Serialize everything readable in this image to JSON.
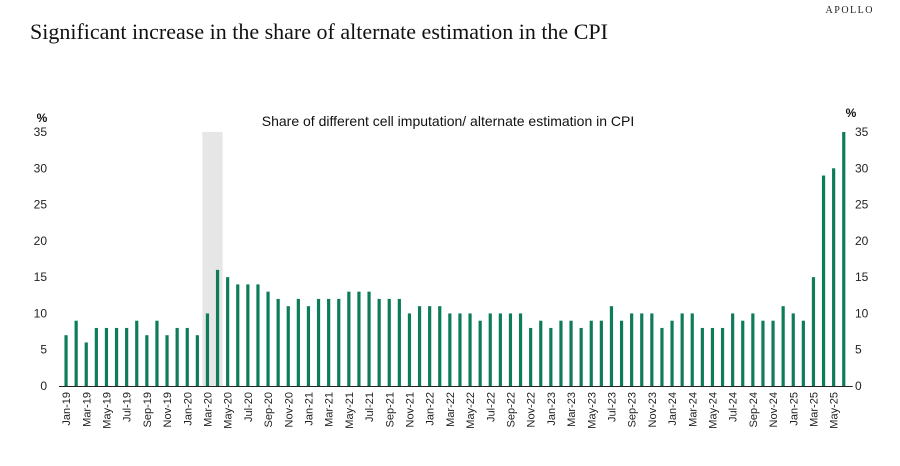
{
  "brand": "APOLLO",
  "page_title": "Significant increase in the share of alternate estimation in the CPI",
  "colors": {
    "bar": "#0e7c5b",
    "shade": "#e6e6e6",
    "text": "#222222"
  },
  "chart_data": {
    "type": "bar",
    "title": "Share of different cell imputation/ alternate estimation in CPI",
    "ylabel_left": "%",
    "ylabel_right": "%",
    "ylim": [
      0,
      35
    ],
    "yticks": [
      0,
      5,
      10,
      15,
      20,
      25,
      30,
      35
    ],
    "shaded_region": {
      "from": "Mar-20",
      "to": "Apr-20"
    },
    "categories": [
      "Jan-19",
      "Feb-19",
      "Mar-19",
      "Apr-19",
      "May-19",
      "Jun-19",
      "Jul-19",
      "Aug-19",
      "Sep-19",
      "Oct-19",
      "Nov-19",
      "Dec-19",
      "Jan-20",
      "Feb-20",
      "Mar-20",
      "Apr-20",
      "May-20",
      "Jun-20",
      "Jul-20",
      "Aug-20",
      "Sep-20",
      "Oct-20",
      "Nov-20",
      "Dec-20",
      "Jan-21",
      "Feb-21",
      "Mar-21",
      "Apr-21",
      "May-21",
      "Jun-21",
      "Jul-21",
      "Aug-21",
      "Sep-21",
      "Oct-21",
      "Nov-21",
      "Dec-21",
      "Jan-22",
      "Feb-22",
      "Mar-22",
      "Apr-22",
      "May-22",
      "Jun-22",
      "Jul-22",
      "Aug-22",
      "Sep-22",
      "Oct-22",
      "Nov-22",
      "Dec-22",
      "Jan-23",
      "Feb-23",
      "Mar-23",
      "Apr-23",
      "May-23",
      "Jun-23",
      "Jul-23",
      "Aug-23",
      "Sep-23",
      "Oct-23",
      "Nov-23",
      "Dec-23",
      "Jan-24",
      "Feb-24",
      "Mar-24",
      "Apr-24",
      "May-24",
      "Jun-24",
      "Jul-24",
      "Aug-24",
      "Sep-24",
      "Oct-24",
      "Nov-24",
      "Dec-24",
      "Jan-25",
      "Feb-25",
      "Mar-25",
      "Apr-25",
      "May-25",
      "Jun-25"
    ],
    "values": [
      7,
      9,
      6,
      8,
      8,
      8,
      8,
      9,
      7,
      9,
      7,
      8,
      8,
      7,
      10,
      16,
      15,
      14,
      14,
      14,
      13,
      12,
      11,
      12,
      11,
      12,
      12,
      12,
      13,
      13,
      13,
      12,
      12,
      12,
      10,
      11,
      11,
      11,
      10,
      10,
      10,
      9,
      10,
      10,
      10,
      10,
      8,
      9,
      8,
      9,
      9,
      8,
      9,
      9,
      11,
      9,
      10,
      10,
      10,
      8,
      9,
      10,
      10,
      8,
      8,
      8,
      10,
      9,
      10,
      9,
      9,
      11,
      10,
      9,
      15,
      29,
      30,
      35
    ],
    "x_tick_labels": [
      "Jan-19",
      "Mar-19",
      "May-19",
      "Jul-19",
      "Sep-19",
      "Nov-19",
      "Jan-20",
      "Mar-20",
      "May-20",
      "Jul-20",
      "Sep-20",
      "Nov-20",
      "Jan-21",
      "Mar-21",
      "May-21",
      "Jul-21",
      "Sep-21",
      "Nov-21",
      "Jan-22",
      "Mar-22",
      "May-22",
      "Jul-22",
      "Sep-22",
      "Nov-22",
      "Jan-23",
      "Mar-23",
      "May-23",
      "Jul-23",
      "Sep-23",
      "Nov-23",
      "Jan-24",
      "Mar-24",
      "May-24",
      "Jul-24",
      "Sep-24",
      "Nov-24",
      "Jan-25",
      "Mar-25",
      "May-25"
    ]
  }
}
